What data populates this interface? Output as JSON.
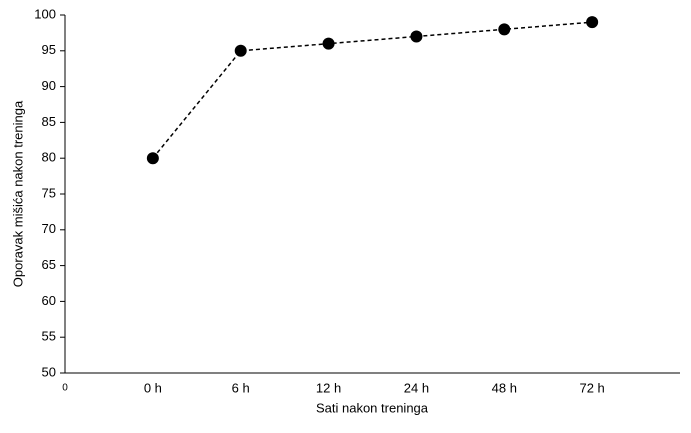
{
  "chart_data": {
    "type": "line",
    "x_label": "Sati nakon treninga",
    "y_label": "Oporavak mišića nakon treninga",
    "x_origin_label": "0",
    "categories": [
      "0 h",
      "6 h",
      "12 h",
      "24 h",
      "48 h",
      "72 h"
    ],
    "values": [
      80,
      95,
      96,
      97,
      98,
      99
    ],
    "color": "#000000",
    "line_style": "dashed",
    "ylim": [
      50,
      100
    ],
    "yticks": [
      50,
      55,
      60,
      65,
      70,
      75,
      80,
      85,
      90,
      95,
      100
    ],
    "grid": false
  }
}
